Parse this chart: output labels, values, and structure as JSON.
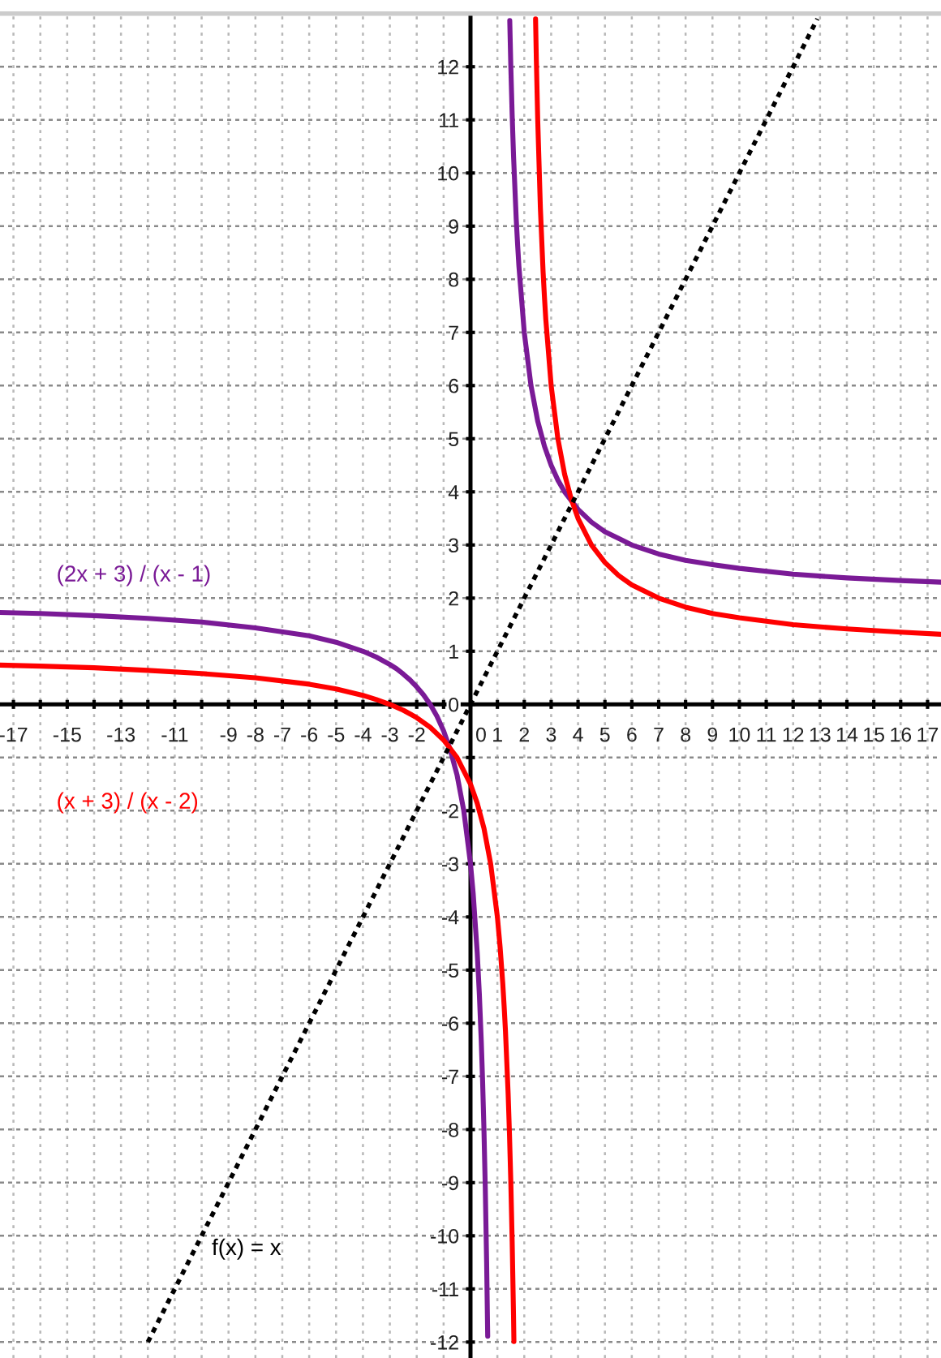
{
  "chart_data": {
    "type": "line",
    "xlim": [
      -17.5,
      17.5
    ],
    "ylim": [
      -12.3,
      13
    ],
    "xticks": [
      -17,
      {
        "value": -16,
        "label": null
      },
      -15,
      {
        "value": -14,
        "label": null
      },
      -13,
      {
        "value": -12,
        "label": null
      },
      -11,
      {
        "value": -10,
        "label": null
      },
      -9,
      -8,
      -7,
      -6,
      -5,
      -4,
      -3,
      -2,
      {
        "value": -1,
        "label": null
      },
      0,
      1,
      2,
      3,
      4,
      5,
      6,
      7,
      8,
      9,
      10,
      11,
      12,
      13,
      14,
      15,
      16,
      17
    ],
    "yticks": [
      -12,
      -11,
      -10,
      -9,
      -8,
      -7,
      -6,
      -5,
      -4,
      -3,
      -2,
      {
        "value": -1,
        "label": null
      },
      0,
      1,
      2,
      3,
      4,
      5,
      6,
      7,
      8,
      9,
      10,
      11,
      12
    ],
    "grid": true,
    "series": [
      {
        "name": "(2x + 3) / (x - 1)",
        "color": "#7a1a96",
        "line_style": "solid",
        "x": [
          -17.5,
          -16,
          -14,
          -12,
          -10,
          -8,
          -6,
          -5,
          -4,
          -3.5,
          -3,
          -2.75,
          -2.5,
          -2.25,
          -2,
          -1.75,
          -1.5,
          -1.25,
          -1,
          -0.75,
          -0.5,
          -0.25,
          0,
          0.1,
          0.25,
          0.33,
          0.4,
          0.45,
          0.5,
          0.55,
          0.6,
          0.64,
          null,
          1.46,
          1.5,
          1.55,
          1.6,
          1.7,
          1.75,
          1.8,
          2,
          2.25,
          2.5,
          2.75,
          3,
          3.25,
          3.5,
          4,
          4.5,
          5,
          6,
          7,
          8,
          9,
          10,
          12,
          14,
          16,
          17.5
        ],
        "values": [
          1.73,
          1.71,
          1.67,
          1.62,
          1.55,
          1.44,
          1.29,
          1.17,
          1.0,
          0.89,
          0.75,
          0.67,
          0.57,
          0.46,
          0.33,
          0.18,
          0,
          -0.22,
          -0.5,
          -0.86,
          -1.33,
          -2,
          -3,
          -3.56,
          -4.67,
          -5.46,
          -6.33,
          -7.09,
          -8,
          -9.11,
          -10.5,
          -11.89,
          null,
          12.87,
          12,
          11.09,
          10.33,
          9.14,
          8.67,
          8.25,
          7,
          6,
          5.33,
          4.86,
          4.5,
          4.22,
          4,
          3.67,
          3.43,
          3.25,
          3,
          2.83,
          2.71,
          2.63,
          2.56,
          2.45,
          2.38,
          2.33,
          2.3
        ]
      },
      {
        "name": "(x + 3) / (x - 2)",
        "color": "#ff0000",
        "line_style": "solid",
        "x": [
          -17.5,
          -16,
          -14,
          -12,
          -10,
          -8,
          -6,
          -5,
          -4,
          -3.5,
          -3,
          -2.5,
          -2,
          -1.5,
          -1,
          -0.5,
          0,
          0.25,
          0.5,
          0.75,
          1,
          1.1,
          1.2,
          1.25,
          1.3,
          1.4,
          1.45,
          1.5,
          1.55,
          1.6,
          1.615,
          null,
          2.42,
          2.45,
          2.5,
          2.6,
          2.7,
          2.75,
          2.8,
          3,
          3.25,
          3.5,
          3.75,
          4,
          4.5,
          5,
          5.5,
          6,
          7,
          8,
          9,
          10,
          12,
          14,
          16,
          17.5
        ],
        "values": [
          0.74,
          0.72,
          0.69,
          0.64,
          0.58,
          0.5,
          0.38,
          0.29,
          0.17,
          0.09,
          0,
          -0.11,
          -0.25,
          -0.43,
          -0.67,
          -1,
          -1.5,
          -1.86,
          -2.33,
          -3,
          -4,
          -4.56,
          -5.25,
          -5.67,
          -6.14,
          -7.33,
          -8.09,
          -9,
          -10.11,
          -11.5,
          -11.99,
          null,
          12.9,
          12.11,
          11,
          9.33,
          8.14,
          7.67,
          7.25,
          6,
          5,
          4.33,
          3.86,
          3.5,
          3,
          2.67,
          2.43,
          2.25,
          2,
          1.83,
          1.71,
          1.63,
          1.5,
          1.42,
          1.36,
          1.32
        ]
      },
      {
        "name": "f(x) = x",
        "color": "#000000",
        "line_style": "dotted",
        "x": [
          -12,
          -9,
          -6,
          -3,
          0,
          3,
          6,
          9,
          12.9
        ],
        "values": [
          -12,
          -9,
          -6,
          -3,
          0,
          3,
          6,
          9,
          12.9
        ]
      }
    ]
  }
}
